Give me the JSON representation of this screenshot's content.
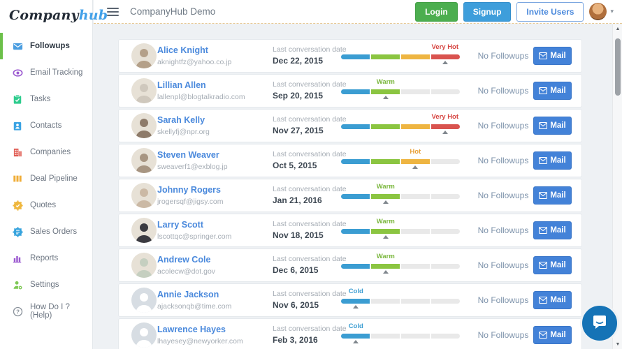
{
  "logo": {
    "part1": "Company",
    "part2": "hub"
  },
  "sidebar": {
    "items": [
      {
        "label": "Followups",
        "icon": "mail-icon",
        "color": "#4a9de0",
        "active": true
      },
      {
        "label": "Email Tracking",
        "icon": "eye-icon",
        "color": "#9b59d0",
        "active": false
      },
      {
        "label": "Tasks",
        "icon": "tasks-icon",
        "color": "#2ecc8e",
        "active": false
      },
      {
        "label": "Contacts",
        "icon": "contacts-icon",
        "color": "#3aa3e3",
        "active": false
      },
      {
        "label": "Companies",
        "icon": "companies-icon",
        "color": "#e05b52",
        "active": false
      },
      {
        "label": "Deal Pipeline",
        "icon": "pipeline-icon",
        "color": "#f0ad37",
        "active": false
      },
      {
        "label": "Quotes",
        "icon": "quotes-icon",
        "color": "#efb73e",
        "active": false
      },
      {
        "label": "Sales Orders",
        "icon": "sales-orders-icon",
        "color": "#36a3dd",
        "active": false
      },
      {
        "label": "Reports",
        "icon": "reports-icon",
        "color": "#9b59d0",
        "active": false
      },
      {
        "label": "Settings",
        "icon": "settings-icon",
        "color": "#7ec855",
        "active": false
      },
      {
        "label": "How Do I ? (Help)",
        "icon": "help-icon",
        "color": "#8a929b",
        "active": false
      }
    ]
  },
  "topbar": {
    "title": "CompanyHub Demo",
    "buttons": [
      {
        "label": "Login",
        "style": "green"
      },
      {
        "label": "Signup",
        "style": "blue"
      },
      {
        "label": "Invite Users",
        "style": "outline"
      }
    ],
    "caret": "▾"
  },
  "row_labels": {
    "last_conversation": "Last conversation date",
    "no_followups": "No Followups",
    "mail": "Mail"
  },
  "list": {
    "rows": [
      {
        "name": "Alice Knight",
        "email": "aknightfz@yahoo.co.jp",
        "date": "Dec 22, 2015",
        "temperature": {
          "label": "Very Hot",
          "level": 4
        },
        "avatar": "photo",
        "avatar_tone": "#b4a089"
      },
      {
        "name": "Lillian Allen",
        "email": "lallenpl@blogtalkradio.com",
        "date": "Sep 20, 2015",
        "temperature": {
          "label": "Warm",
          "level": 2
        },
        "avatar": "photo",
        "avatar_tone": "#cfc8bd"
      },
      {
        "name": "Sarah Kelly",
        "email": "skellyfj@npr.org",
        "date": "Nov 27, 2015",
        "temperature": {
          "label": "Very Hot",
          "level": 4
        },
        "avatar": "photo",
        "avatar_tone": "#8e7b6a"
      },
      {
        "name": "Steven Weaver",
        "email": "sweaverf1@exblog.jp",
        "date": "Oct 5, 2015",
        "temperature": {
          "label": "Hot",
          "level": 3
        },
        "avatar": "photo",
        "avatar_tone": "#a79582"
      },
      {
        "name": "Johnny Rogers",
        "email": "jrogersqf@jigsy.com",
        "date": "Jan 21, 2016",
        "temperature": {
          "label": "Warm",
          "level": 2
        },
        "avatar": "photo",
        "avatar_tone": "#cbb9a5"
      },
      {
        "name": "Larry Scott",
        "email": "lscottqc@springer.com",
        "date": "Nov 18, 2015",
        "temperature": {
          "label": "Warm",
          "level": 2
        },
        "avatar": "photo",
        "avatar_tone": "#3a3a40"
      },
      {
        "name": "Andrew Cole",
        "email": "acolecw@dot.gov",
        "date": "Dec 6, 2015",
        "temperature": {
          "label": "Warm",
          "level": 2
        },
        "avatar": "photo",
        "avatar_tone": "#c5cfc0"
      },
      {
        "name": "Annie Jackson",
        "email": "ajacksonqb@time.com",
        "date": "Nov 6, 2015",
        "temperature": {
          "label": "Cold",
          "level": 1
        },
        "avatar": "placeholder",
        "avatar_tone": "#d7dde3"
      },
      {
        "name": "Lawrence Hayes",
        "email": "lhayesey@newyorker.com",
        "date": "Feb 3, 2016",
        "temperature": {
          "label": "Cold",
          "level": 1
        },
        "avatar": "placeholder",
        "avatar_tone": "#d7dde3"
      }
    ]
  },
  "temperature_scale": {
    "levels": [
      "Cold",
      "Warm",
      "Hot",
      "Very Hot"
    ],
    "segment_colors": [
      "#3b9dd2",
      "#8bc541",
      "#eeb542",
      "#d9534f"
    ],
    "label_colors": {
      "Cold": "#3b9dd2",
      "Warm": "#7cb83f",
      "Hot": "#e9a23b",
      "Very Hot": "#d64541"
    },
    "inactive_color": "#e9e9e9"
  },
  "colors": {
    "active_indicator_green": "#6cc04a",
    "login_green": "#4cae4f",
    "signup_blue": "#3e9edb",
    "invite_outline_blue": "#4a89dc",
    "mail_button_blue": "#4382d8",
    "dashed_divider": "#e6c791",
    "content_background": "#eef1f4",
    "chat_widget_blue": "#1573b6"
  },
  "scrollbar": {
    "up_glyph": "▲",
    "down_glyph": "▼"
  }
}
